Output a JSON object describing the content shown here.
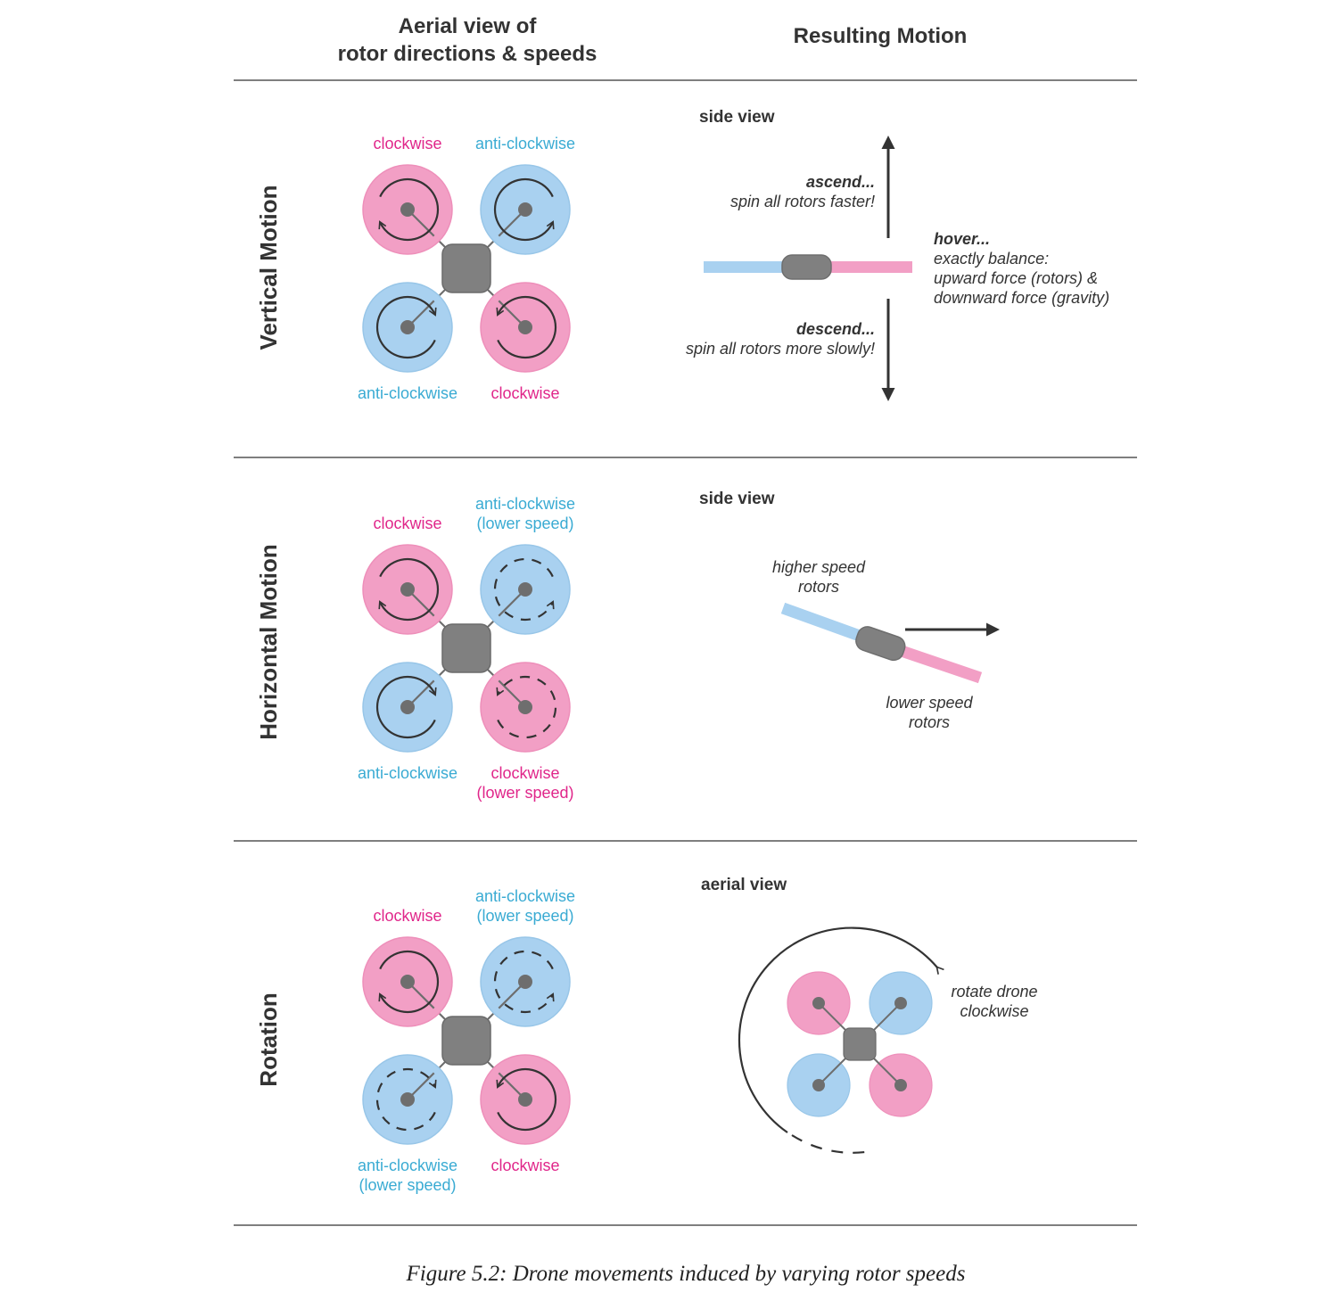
{
  "colors": {
    "pink": "#f29fc5",
    "pink_text": "#e0268a",
    "blue": "#a9d1f0",
    "blue_text": "#3aabd3",
    "body_grey": "#808080",
    "ink": "#333333"
  },
  "header": {
    "left_line1": "Aerial view of",
    "left_line2": "rotor directions & speeds",
    "right": "Resulting Motion"
  },
  "rows": [
    {
      "title": "Vertical Motion",
      "view_label": "side view",
      "rotors": [
        {
          "label": [
            "clockwise"
          ],
          "color": "pink",
          "direction": "clockwise",
          "speed": "normal"
        },
        {
          "label": [
            "anti-clockwise"
          ],
          "color": "blue",
          "direction": "anti-clockwise",
          "speed": "normal"
        },
        {
          "label": [
            "anti-clockwise"
          ],
          "color": "blue",
          "direction": "anti-clockwise",
          "speed": "normal"
        },
        {
          "label": [
            "clockwise"
          ],
          "color": "pink",
          "direction": "clockwise",
          "speed": "normal"
        }
      ],
      "ascend_title": "ascend...",
      "ascend_text": "spin all rotors faster!",
      "hover_title": "hover...",
      "hover_lines": [
        "exactly balance:",
        "upward force (rotors) &",
        "downward force (gravity)"
      ],
      "descend_title": "descend...",
      "descend_text": "spin all rotors more slowly!"
    },
    {
      "title": "Horizontal Motion",
      "view_label": "side view",
      "rotors": [
        {
          "label": [
            "clockwise"
          ],
          "color": "pink",
          "direction": "clockwise",
          "speed": "normal"
        },
        {
          "label": [
            "anti-clockwise",
            "(lower speed)"
          ],
          "color": "blue",
          "direction": "anti-clockwise",
          "speed": "lower"
        },
        {
          "label": [
            "anti-clockwise"
          ],
          "color": "blue",
          "direction": "anti-clockwise",
          "speed": "normal"
        },
        {
          "label": [
            "clockwise",
            "(lower speed)"
          ],
          "color": "pink",
          "direction": "clockwise",
          "speed": "lower"
        }
      ],
      "higher_lines": [
        "higher speed",
        "rotors"
      ],
      "lower_lines": [
        "lower speed",
        "rotors"
      ]
    },
    {
      "title": "Rotation",
      "view_label": "aerial view",
      "rotors": [
        {
          "label": [
            "clockwise"
          ],
          "color": "pink",
          "direction": "clockwise",
          "speed": "normal"
        },
        {
          "label": [
            "anti-clockwise",
            "(lower speed)"
          ],
          "color": "blue",
          "direction": "anti-clockwise",
          "speed": "lower"
        },
        {
          "label": [
            "anti-clockwise",
            "(lower speed)"
          ],
          "color": "blue",
          "direction": "anti-clockwise",
          "speed": "lower"
        },
        {
          "label": [
            "clockwise"
          ],
          "color": "pink",
          "direction": "clockwise",
          "speed": "normal"
        }
      ],
      "rotate_lines": [
        "rotate drone",
        "clockwise"
      ]
    }
  ],
  "caption": "Figure 5.2:  Drone movements induced by varying rotor speeds"
}
